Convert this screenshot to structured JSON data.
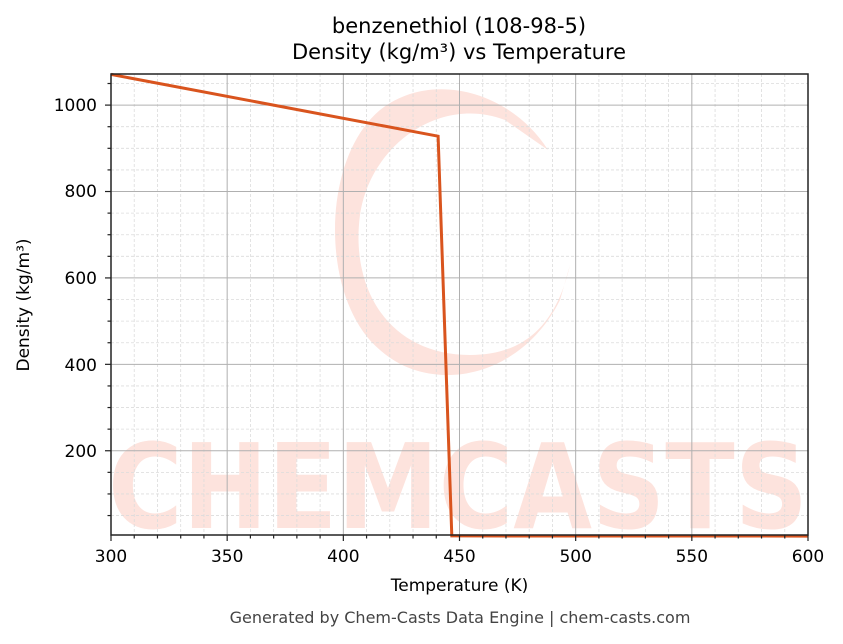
{
  "header": {
    "title_line1": "benzenethiol (108-98-5)",
    "title_line2": "Density (kg/m³) vs Temperature"
  },
  "axes": {
    "xlabel": "Temperature (K)",
    "ylabel": "Density (kg/m³)",
    "x_ticks": [
      "300",
      "350",
      "400",
      "450",
      "500",
      "550",
      "600"
    ],
    "y_ticks": [
      "200",
      "400",
      "600",
      "800",
      "1000"
    ]
  },
  "watermark": {
    "text": "CHEMCASTS",
    "color": "#fde3dd"
  },
  "footer": {
    "text": "Generated by Chem-Casts Data Engine | chem-casts.com"
  },
  "colors": {
    "line": "#d9541e",
    "major_grid": "#b0b0b0",
    "minor_grid": "#dcdcdc",
    "axis": "#222222"
  },
  "chart_data": {
    "type": "line",
    "title": "benzenethiol (108-98-5)\nDensity (kg/m³) vs Temperature",
    "xlabel": "Temperature (K)",
    "ylabel": "Density (kg/m³)",
    "xlim": [
      300,
      600
    ],
    "ylim": [
      5,
      1072
    ],
    "x_ticks": [
      300,
      350,
      400,
      450,
      500,
      550,
      600
    ],
    "y_ticks": [
      200,
      400,
      600,
      800,
      1000
    ],
    "grid": true,
    "minor_grid": true,
    "legend": null,
    "series": [
      {
        "name": "Density",
        "color": "#d9541e",
        "x": [
          300,
          440.8,
          446.7,
          450,
          500,
          550,
          600
        ],
        "y": [
          1071,
          928,
          3,
          3,
          2.8,
          2.6,
          2.4
        ]
      }
    ]
  }
}
